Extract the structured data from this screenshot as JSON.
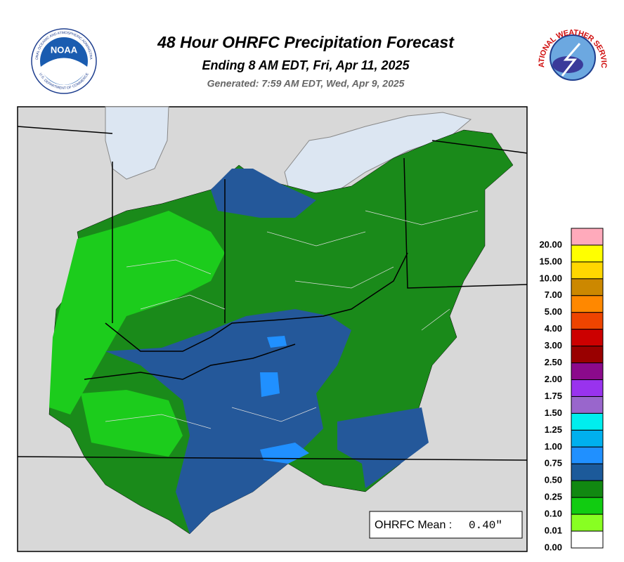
{
  "header": {
    "title": "48 Hour OHRFC Precipitation Forecast",
    "subtitle": "Ending 8 AM EDT, Fri, Apr 11, 2025",
    "generated": "Generated: 7:59 AM EDT, Wed, Apr 9, 2025"
  },
  "logos": {
    "noaa": "NOAA",
    "noaa_ring_top": "NATIONAL OCEANIC AND ATMOSPHERIC ADMINISTRATION",
    "noaa_ring_bottom": "U.S. DEPARTMENT OF COMMERCE",
    "nws_ring": "NATIONAL WEATHER SERVICE"
  },
  "legend": {
    "items": [
      {
        "label": "20.00",
        "color": "#ffaabb"
      },
      {
        "label": "15.00",
        "color": "#ffff00"
      },
      {
        "label": "10.00",
        "color": "#ffd700"
      },
      {
        "label": "7.00",
        "color": "#cc8800"
      },
      {
        "label": "5.00",
        "color": "#ff8800"
      },
      {
        "label": "4.00",
        "color": "#ee4400"
      },
      {
        "label": "3.00",
        "color": "#cc0000"
      },
      {
        "label": "2.50",
        "color": "#990000"
      },
      {
        "label": "2.00",
        "color": "#8b0a8b"
      },
      {
        "label": "1.75",
        "color": "#9933ee"
      },
      {
        "label": "1.50",
        "color": "#9966cc"
      },
      {
        "label": "1.25",
        "color": "#00eeee"
      },
      {
        "label": "1.00",
        "color": "#00b0ee"
      },
      {
        "label": "0.75",
        "color": "#2090ff"
      },
      {
        "label": "0.50",
        "color": "#1c5a9a"
      },
      {
        "label": "0.25",
        "color": "#118811"
      },
      {
        "label": "0.10",
        "color": "#11cc11"
      },
      {
        "label": "0.01",
        "color": "#88ff22"
      },
      {
        "label": "0.00",
        "color": "#ffffff"
      }
    ]
  },
  "mean": {
    "label": "OHRFC Mean :",
    "value": "0.40\""
  }
}
